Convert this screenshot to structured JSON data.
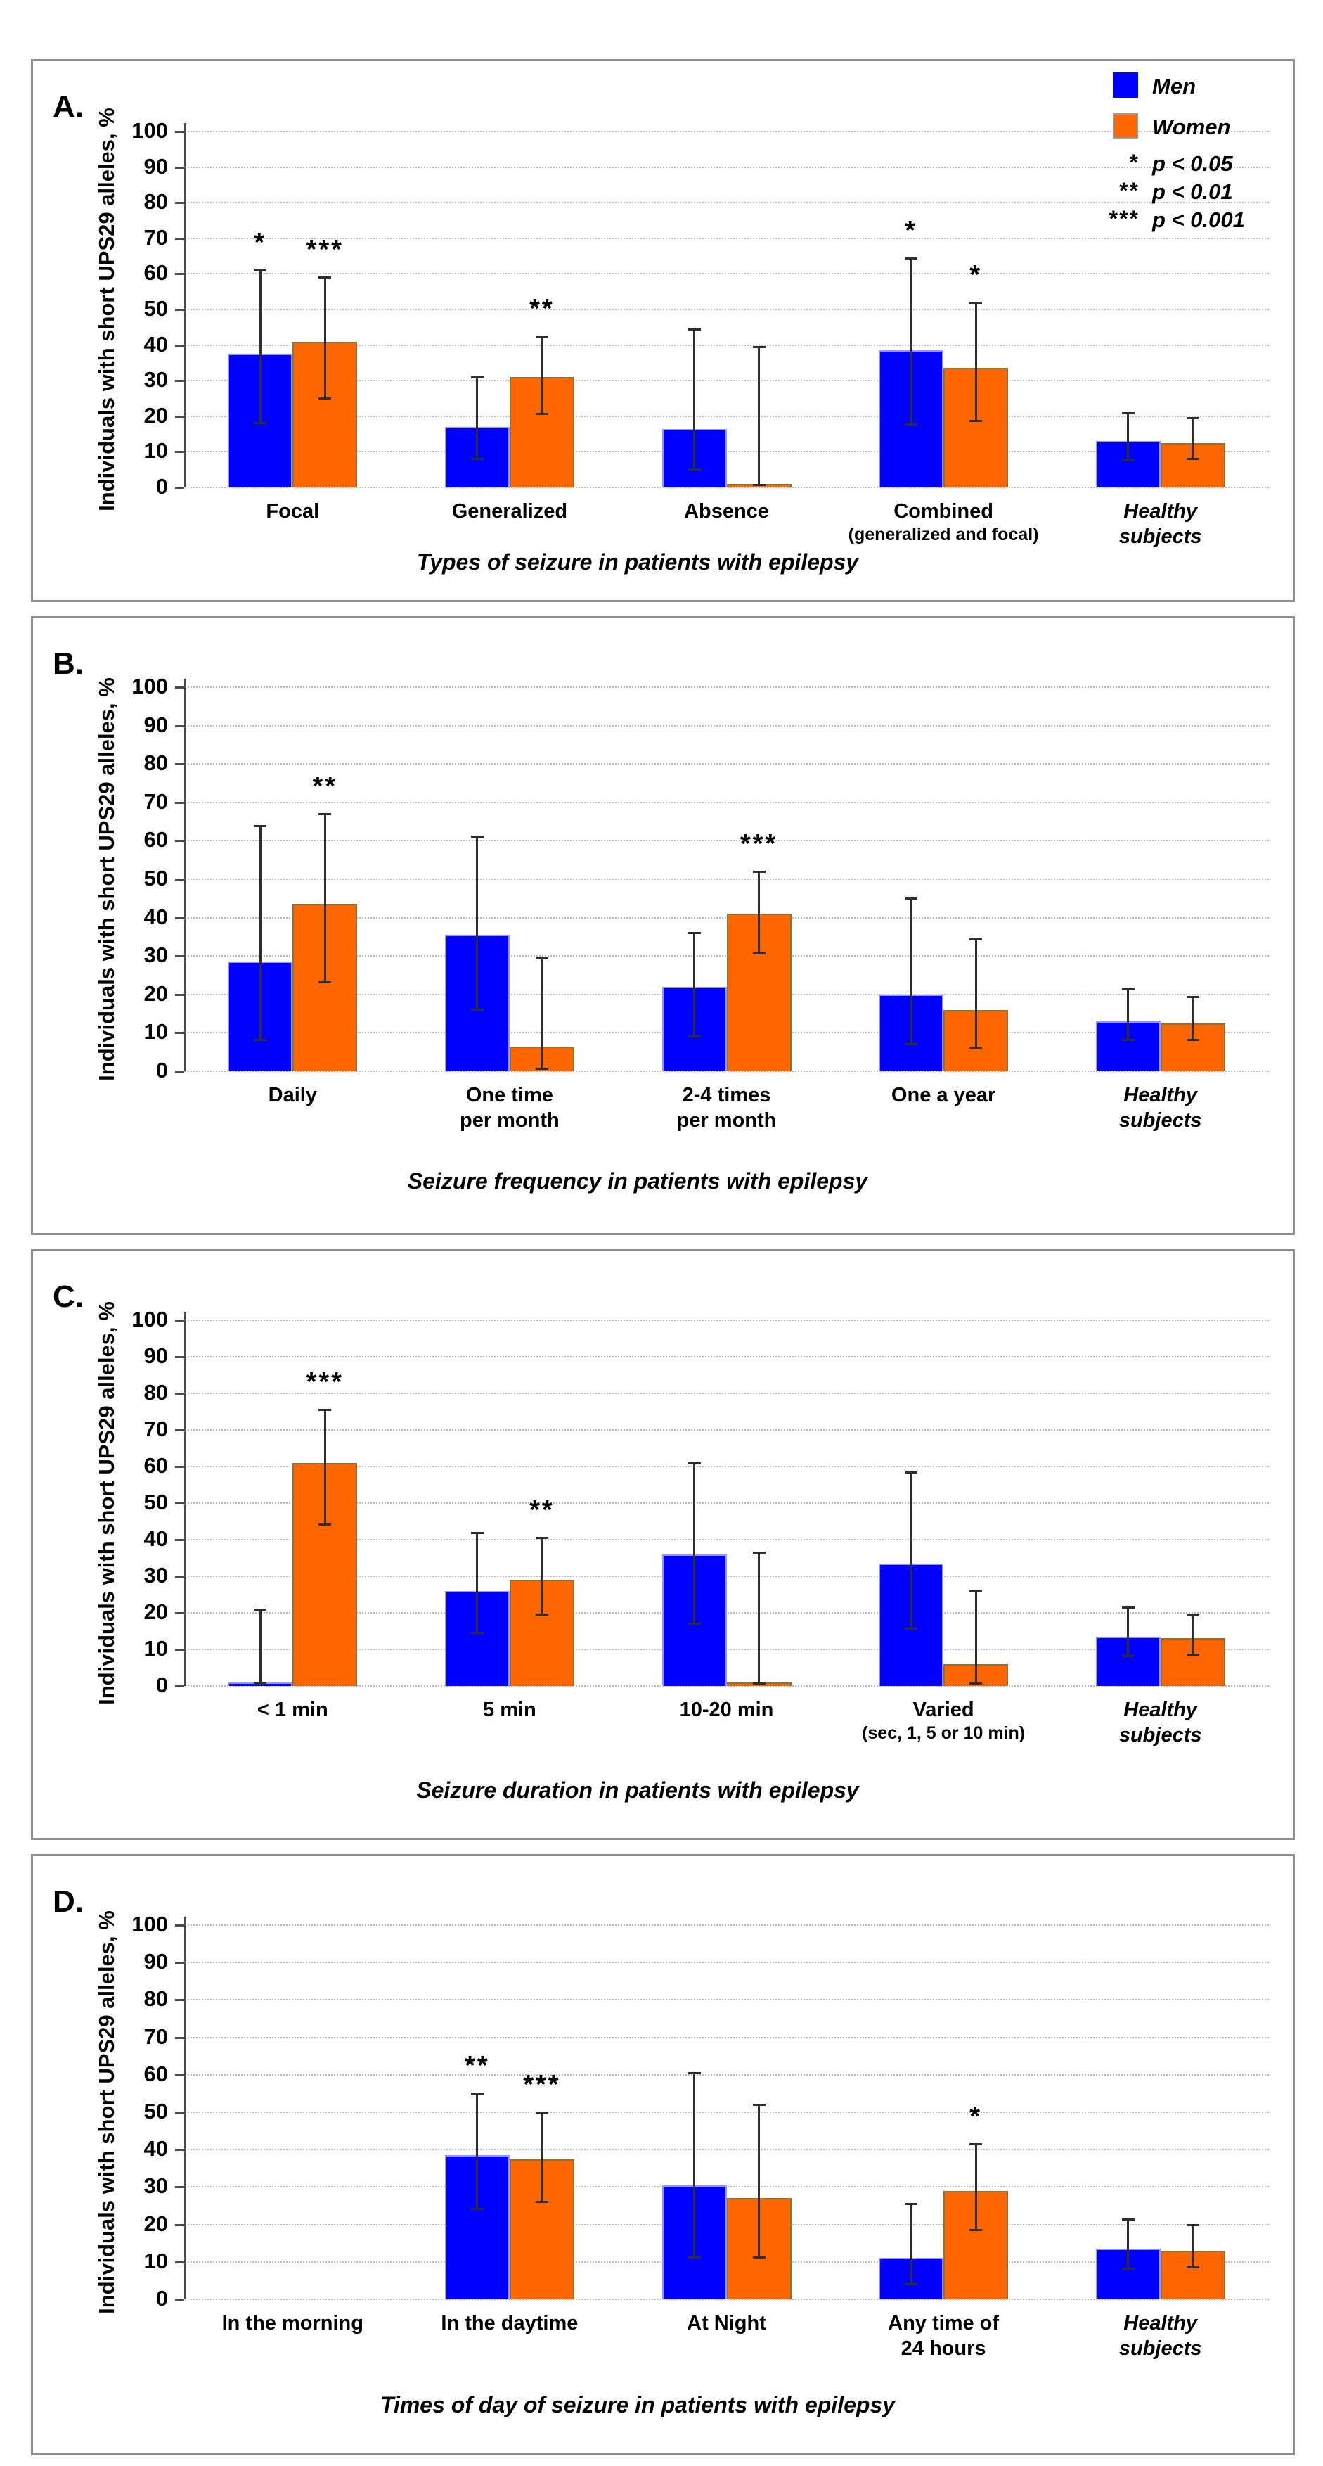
{
  "ylabel": "Individuals with short UPS29 alleles, %",
  "colors": {
    "men": "#0000ff",
    "men_border": "#9595ff",
    "women": "#ff6600",
    "women_border": "#8a7435",
    "error": "#2e2e2e"
  },
  "legend": {
    "men": "Men",
    "women": "Women",
    "sig_rows": [
      {
        "stars": "*",
        "label": "p < 0.05"
      },
      {
        "stars": "**",
        "label": "p < 0.01"
      },
      {
        "stars": "***",
        "label": "p < 0.001"
      }
    ]
  },
  "chart_data": [
    {
      "type": "bar",
      "panel": "A.",
      "xlabel": "Types of seizure in patients with epilepsy",
      "ylim": [
        0,
        100
      ],
      "ytick_step": 10,
      "grid": true,
      "legend_position": "top-right",
      "show_legend": true,
      "categories": [
        {
          "lines": [
            "Focal"
          ]
        },
        {
          "lines": [
            "Generalized"
          ]
        },
        {
          "lines": [
            "Absence"
          ]
        },
        {
          "lines": [
            "Combined",
            "(generalized and focal)"
          ],
          "small_line2": true
        },
        {
          "lines": [
            "Healthy",
            "subjects"
          ],
          "italic": true
        }
      ],
      "series": [
        {
          "name": "Men",
          "values": [
            37.5,
            17,
            16.5,
            38.5,
            13
          ],
          "err_lo": [
            18,
            8,
            5,
            17.5,
            7.5
          ],
          "err_hi": [
            61,
            31,
            44.5,
            64.5,
            21
          ],
          "sig": [
            "*",
            "",
            "",
            "*",
            ""
          ]
        },
        {
          "name": "Women",
          "values": [
            41,
            31,
            1,
            33.5,
            12.5
          ],
          "err_lo": [
            25,
            20.5,
            0.5,
            18.5,
            8
          ],
          "err_hi": [
            59,
            42.5,
            39.5,
            52,
            19.5
          ],
          "sig": [
            "***",
            "**",
            "",
            "*",
            ""
          ]
        }
      ]
    },
    {
      "type": "bar",
      "panel": "B.",
      "xlabel": "Seizure frequency in patients with epilepsy",
      "ylim": [
        0,
        100
      ],
      "ytick_step": 10,
      "grid": true,
      "show_legend": false,
      "categories": [
        {
          "lines": [
            "Daily"
          ]
        },
        {
          "lines": [
            "One time",
            "per month"
          ]
        },
        {
          "lines": [
            "2-4 times",
            "per month"
          ]
        },
        {
          "lines": [
            "One a year"
          ]
        },
        {
          "lines": [
            "Healthy",
            "subjects"
          ],
          "italic": true
        }
      ],
      "series": [
        {
          "name": "Men",
          "values": [
            28.5,
            35.5,
            22,
            20,
            13
          ],
          "err_lo": [
            8,
            16,
            9,
            7,
            8
          ],
          "err_hi": [
            64,
            61,
            36,
            45,
            21.5
          ],
          "sig": [
            "",
            "",
            "",
            "",
            ""
          ]
        },
        {
          "name": "Women",
          "values": [
            43.5,
            6.5,
            41,
            16,
            12.5
          ],
          "err_lo": [
            23,
            0.5,
            30.5,
            6,
            8
          ],
          "err_hi": [
            67,
            29.5,
            52,
            34.5,
            19.5
          ],
          "sig": [
            "**",
            "",
            "***",
            "",
            ""
          ]
        }
      ]
    },
    {
      "type": "bar",
      "panel": "C.",
      "xlabel": "Seizure duration in patients with epilepsy",
      "ylim": [
        0,
        100
      ],
      "ytick_step": 10,
      "grid": true,
      "show_legend": false,
      "categories": [
        {
          "lines": [
            "< 1 min"
          ]
        },
        {
          "lines": [
            "5 min"
          ]
        },
        {
          "lines": [
            "10-20 min"
          ]
        },
        {
          "lines": [
            "Varied",
            "(sec, 1, 5 or 10 min)"
          ],
          "small_line2": true
        },
        {
          "lines": [
            "Healthy",
            "subjects"
          ],
          "italic": true
        }
      ],
      "series": [
        {
          "name": "Men",
          "values": [
            1,
            26,
            36,
            33.5,
            13.5
          ],
          "err_lo": [
            0.5,
            14.5,
            17,
            15.5,
            8
          ],
          "err_hi": [
            21,
            42,
            61,
            58.5,
            21.5
          ],
          "sig": [
            "",
            "",
            "",
            "",
            ""
          ]
        },
        {
          "name": "Women",
          "values": [
            61,
            29,
            1,
            6,
            13
          ],
          "err_lo": [
            44,
            19.5,
            0.5,
            0.5,
            8.5
          ],
          "err_hi": [
            75.5,
            40.5,
            36.5,
            26,
            19.5
          ],
          "sig": [
            "***",
            "**",
            "",
            "",
            ""
          ]
        }
      ]
    },
    {
      "type": "bar",
      "panel": "D.",
      "xlabel": "Times of day of seizure in patients with epilepsy",
      "ylim": [
        0,
        100
      ],
      "ytick_step": 10,
      "grid": true,
      "show_legend": false,
      "categories": [
        {
          "lines": [
            "In the morning"
          ]
        },
        {
          "lines": [
            "In the daytime"
          ]
        },
        {
          "lines": [
            "At  Night"
          ]
        },
        {
          "lines": [
            "Any time of",
            "24 hours"
          ]
        },
        {
          "lines": [
            "Healthy",
            "subjects"
          ],
          "italic": true
        }
      ],
      "series": [
        {
          "name": "Men",
          "values": [
            0,
            38.5,
            30.5,
            11,
            13.5
          ],
          "err_lo": [
            null,
            24,
            11,
            4,
            8
          ],
          "err_hi": [
            null,
            55,
            60.5,
            25.5,
            21.5
          ],
          "sig": [
            "",
            "**",
            "",
            "",
            ""
          ]
        },
        {
          "name": "Women",
          "values": [
            0,
            37.5,
            27,
            29,
            13
          ],
          "err_lo": [
            null,
            26,
            11,
            18.5,
            8.5
          ],
          "err_hi": [
            null,
            50,
            52,
            41.5,
            20
          ],
          "sig": [
            "",
            "***",
            "",
            "*",
            ""
          ]
        }
      ]
    }
  ]
}
